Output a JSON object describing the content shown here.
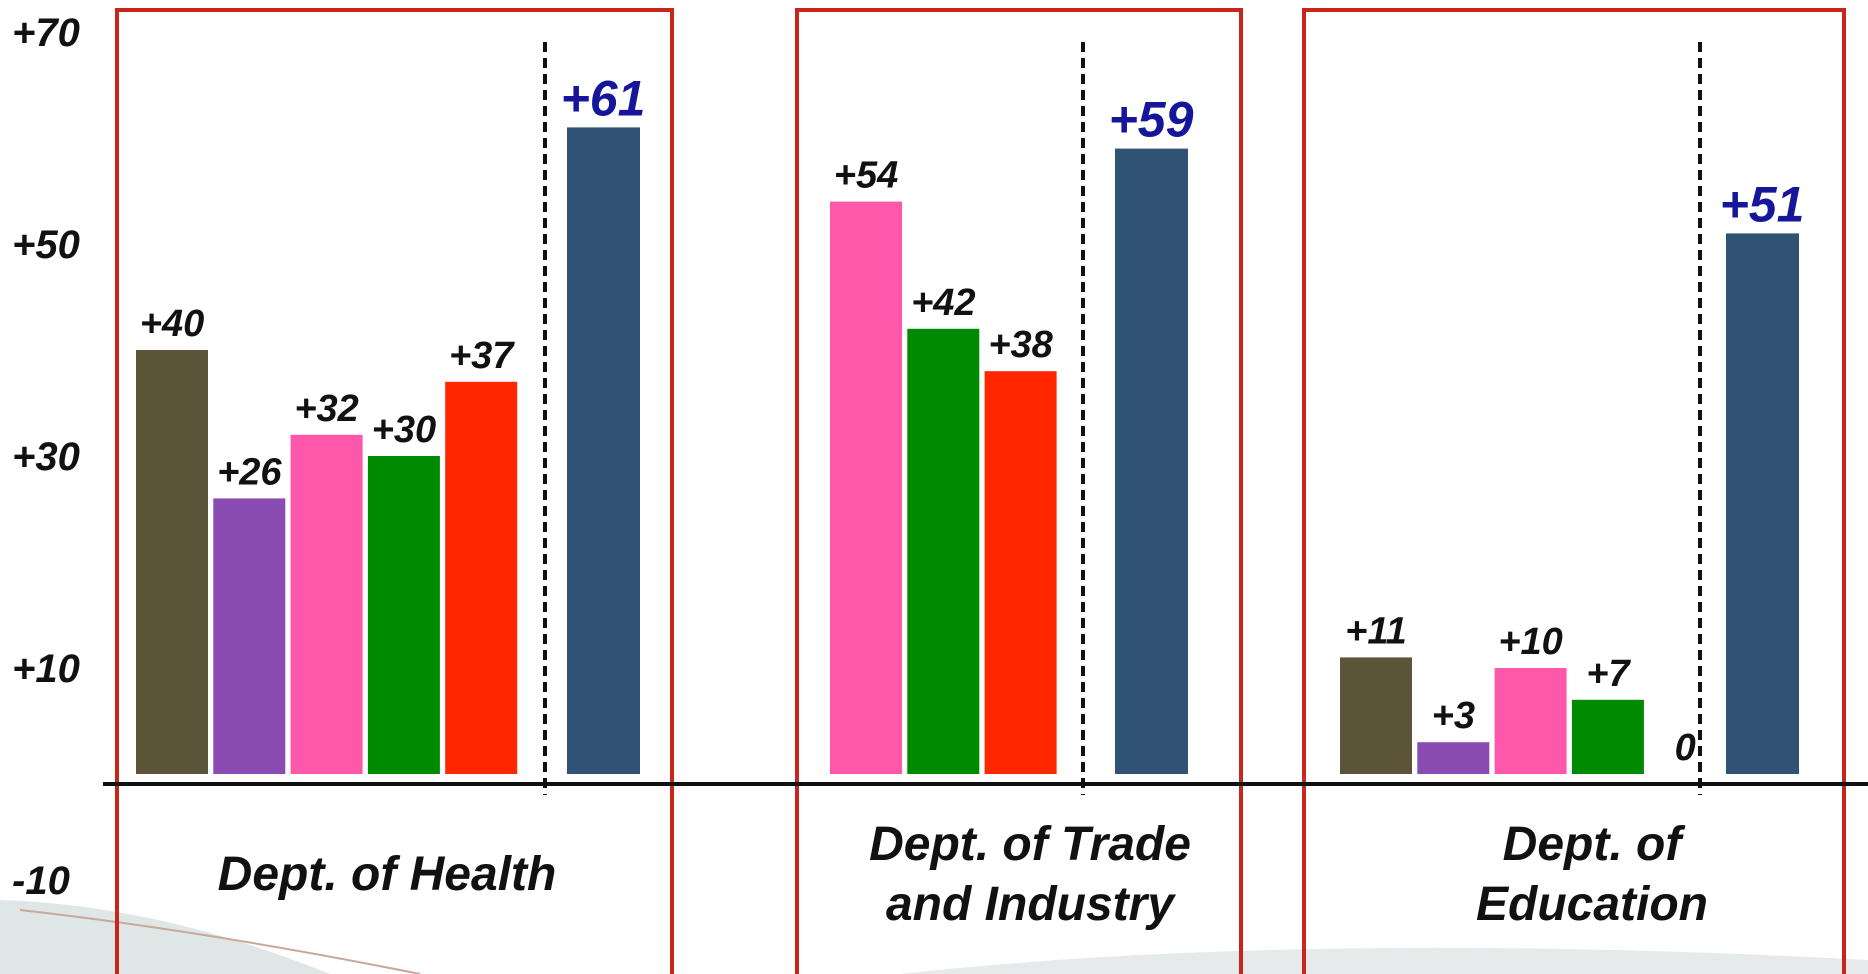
{
  "chart_data": {
    "type": "bar",
    "ylim": [
      -10,
      70
    ],
    "yticks": [
      {
        "value": 70,
        "label": "+70"
      },
      {
        "value": 50,
        "label": "+50"
      },
      {
        "value": 30,
        "label": "+30"
      },
      {
        "value": 10,
        "label": "+10"
      },
      {
        "value": -10,
        "label": "-10"
      }
    ],
    "frame_color": "#c9261b",
    "total_label_color": "#16169a",
    "groups": [
      {
        "name": "Dept. of Health",
        "values": [
          40,
          26,
          32,
          30,
          37
        ],
        "value_labels": [
          "+40",
          "+26",
          "+32",
          "+30",
          "+37"
        ],
        "colors": [
          "#5c5439",
          "#8a4cb2",
          "#ff57a9",
          "#008a00",
          "#ff2600"
        ],
        "total": 61,
        "total_label": "+61",
        "total_color": "#2f5275"
      },
      {
        "name": "Dept. of Trade and Industry",
        "values": [
          54,
          42,
          38
        ],
        "value_labels": [
          "+54",
          "+42",
          "+38"
        ],
        "colors": [
          "#ff57a9",
          "#008a00",
          "#ff2600"
        ],
        "total": 59,
        "total_label": "+59",
        "total_color": "#2f5275"
      },
      {
        "name": "Dept. of Education",
        "values": [
          11,
          3,
          10,
          7,
          0
        ],
        "value_labels": [
          "+11",
          "+3",
          "+10",
          "+7",
          "0"
        ],
        "colors": [
          "#5c5439",
          "#8a4cb2",
          "#ff57a9",
          "#008a00",
          "#ff2600"
        ],
        "total": 51,
        "total_label": "+51",
        "total_color": "#2f5275"
      }
    ]
  }
}
